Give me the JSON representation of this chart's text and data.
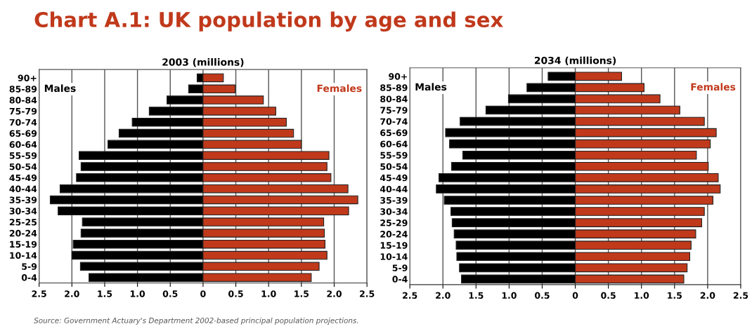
{
  "chart_data": [
    {
      "type": "bar",
      "orientation": "horizontal",
      "stacked": true,
      "title": "Chart A.1: UK population by age and sex",
      "subtitle": "2003 (millions)",
      "annotations": [
        "Source: Government Actuary's Department 2002-based principal population projections."
      ],
      "categories": [
        "90+",
        "85-89",
        "80-84",
        "75-79",
        "70-74",
        "65-69",
        "60-64",
        "55-59",
        "50-54",
        "45-49",
        "40-44",
        "35-39",
        "30-34",
        "25-25",
        "20-24",
        "15-19",
        "10-14",
        "5-9",
        "0-4"
      ],
      "series": [
        {
          "name": "Males",
          "color": "#000000",
          "values": [
            -0.09,
            -0.22,
            -0.55,
            -0.82,
            -1.08,
            -1.28,
            -1.45,
            -1.89,
            -1.86,
            -1.93,
            -2.18,
            -2.33,
            -2.21,
            -1.84,
            -1.86,
            -1.98,
            -2.0,
            -1.87,
            -1.74
          ]
        },
        {
          "name": "Females",
          "color": "#c0391b",
          "values": [
            0.31,
            0.49,
            0.92,
            1.11,
            1.27,
            1.38,
            1.5,
            1.92,
            1.89,
            1.95,
            2.21,
            2.36,
            2.22,
            1.84,
            1.85,
            1.86,
            1.89,
            1.77,
            1.65
          ]
        }
      ],
      "xlim": [
        -2.5,
        2.5
      ],
      "xticks": [
        {
          "value": -2.5,
          "label": "2.5"
        },
        {
          "value": -2.0,
          "label": "2.0"
        },
        {
          "value": -1.5,
          "label": "1.5"
        },
        {
          "value": -1.0,
          "label": "1.0"
        },
        {
          "value": -0.5,
          "label": "0.5"
        },
        0,
        0.5,
        {
          "value": 1.0,
          "label": "1.0"
        },
        1.5,
        {
          "value": 2.0,
          "label": "2.0"
        },
        2.5
      ],
      "grid": "x",
      "legend": false
    },
    {
      "type": "bar",
      "orientation": "horizontal",
      "stacked": true,
      "subtitle": "2034 (millions)",
      "categories": [
        "90+",
        "85-89",
        "80-84",
        "75-79",
        "70-74",
        "65-69",
        "60-64",
        "55-59",
        "50-54",
        "45-49",
        "40-44",
        "35-39",
        "30-34",
        "25-29",
        "20-24",
        "15-19",
        "10-14",
        "5-9",
        "0-4"
      ],
      "series": [
        {
          "name": "Males",
          "color": "#000000",
          "values": [
            -0.41,
            -0.73,
            -1.01,
            -1.35,
            -1.74,
            -1.96,
            -1.9,
            -1.7,
            -1.87,
            -2.06,
            -2.1,
            -1.98,
            -1.88,
            -1.86,
            -1.83,
            -1.8,
            -1.79,
            -1.75,
            -1.72
          ]
        },
        {
          "name": "Females",
          "color": "#c0391b",
          "values": [
            0.7,
            1.04,
            1.28,
            1.58,
            1.95,
            2.13,
            2.04,
            1.83,
            2.01,
            2.16,
            2.19,
            2.08,
            1.95,
            1.91,
            1.82,
            1.75,
            1.73,
            1.69,
            1.64
          ]
        }
      ],
      "xlim": [
        -2.5,
        2.5
      ],
      "xticks": [
        {
          "value": -2.5,
          "label": "2.5"
        },
        {
          "value": -2.0,
          "label": "2.0"
        },
        {
          "value": -1.5,
          "label": "1.5"
        },
        {
          "value": -1.0,
          "label": "1.0"
        },
        {
          "value": -0.5,
          "label": "0.5"
        },
        0,
        0.5,
        {
          "value": 1.0,
          "label": "1.0"
        },
        1.5,
        {
          "value": 2.0,
          "label": "2.0"
        },
        2.5
      ],
      "grid": "x",
      "legend": false
    }
  ]
}
